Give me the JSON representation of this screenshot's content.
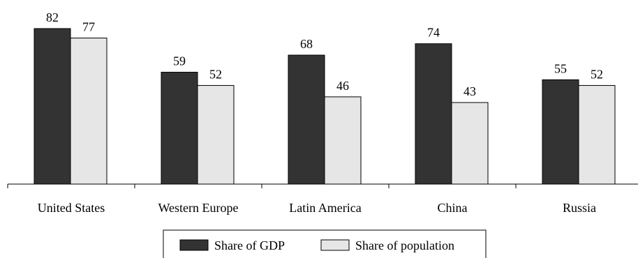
{
  "chart_data": {
    "type": "bar",
    "title": "",
    "xlabel": "",
    "ylabel": "",
    "categories": [
      "United States",
      "Western Europe",
      "Latin America",
      "China",
      "Russia"
    ],
    "series": [
      {
        "name": "Share of GDP",
        "values": [
          82,
          59,
          68,
          74,
          55
        ],
        "color": "#333333"
      },
      {
        "name": "Share of population",
        "values": [
          77,
          52,
          46,
          43,
          52
        ],
        "color": "#e6e6e6"
      }
    ],
    "ylim": [
      0,
      85
    ],
    "grid": false,
    "legend": "bottom-center",
    "data_labels": true
  }
}
